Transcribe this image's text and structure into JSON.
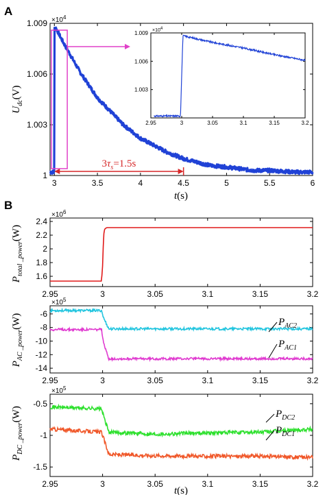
{
  "panel_labels": {
    "a": "A",
    "b": "B"
  },
  "chart_data": [
    {
      "id": "A-main",
      "type": "line",
      "ylabel": {
        "main": "U",
        "sub": "dc",
        "unit": "(V)"
      },
      "xlabel": {
        "main": "t",
        "unit": "(s)"
      },
      "xlim": [
        2.95,
        6.0
      ],
      "ylim": [
        1.0,
        1.009
      ],
      "xticks": [
        3,
        3.5,
        4,
        4.5,
        5,
        5.5,
        6
      ],
      "xtick_labels": [
        "3",
        "3.5",
        "4",
        "4.5",
        "5",
        "5.5",
        "6"
      ],
      "yticks": [
        1.0,
        1.003,
        1.006,
        1.009
      ],
      "ytick_labels": [
        "1",
        "1.003",
        "1.006",
        "1.009"
      ],
      "multiplier": "×10",
      "multiplier_exp": "4",
      "color": "#2042d6",
      "series": [
        {
          "x": [
            2.95,
            2.99,
            2.99,
            3.0,
            3.0,
            3.02,
            3.1,
            3.3,
            3.5,
            3.8,
            4.0,
            4.3,
            4.5,
            4.8,
            5.0,
            5.3,
            5.5,
            5.8,
            6.0
          ],
          "values": [
            1.0002,
            1.0002,
            1.0002,
            1.0002,
            1.0087,
            1.0087,
            1.0079,
            1.0061,
            1.0046,
            1.003,
            1.0022,
            1.0014,
            1.001,
            1.0006,
            1.0005,
            1.0003,
            1.0003,
            1.0002,
            1.0002
          ]
        }
      ],
      "highlight_box": {
        "x": [
          2.965,
          3.15
        ],
        "y": [
          1.0,
          1.009
        ],
        "color": "#e040c8"
      },
      "annotation": {
        "label": "3",
        "tau": "τ",
        "sub": "s",
        "value": "=1.5s",
        "x": [
          3.0,
          4.5
        ],
        "color": "#d62728"
      }
    },
    {
      "id": "A-inset",
      "type": "line",
      "xlim": [
        2.95,
        3.2
      ],
      "ylim": [
        1.0,
        1.009
      ],
      "xticks": [
        2.95,
        3,
        3.05,
        3.1,
        3.15,
        3.2
      ],
      "xtick_labels": [
        "2.95",
        "3",
        "3.05",
        "3.1",
        "3.15",
        "3.2"
      ],
      "yticks": [
        1.003,
        1.006,
        1.009
      ],
      "ytick_labels": [
        "1.003",
        "1.006",
        "1.009"
      ],
      "multiplier": "×10",
      "multiplier_exp": "4",
      "color": "#2042d6",
      "series": [
        {
          "x": [
            2.955,
            2.998,
            3.0,
            3.002,
            3.05,
            3.1,
            3.15,
            3.2
          ],
          "values": [
            1.0002,
            1.0002,
            1.0045,
            1.0087,
            1.008,
            1.0074,
            1.0067,
            1.0061
          ]
        }
      ]
    },
    {
      "id": "B-total",
      "type": "line",
      "ylabel": {
        "main": "P",
        "sub": "total _power",
        "unit": "(W)"
      },
      "xlim": [
        2.95,
        3.2
      ],
      "ylim": [
        1.45,
        2.45
      ],
      "xticks": [
        2.95,
        3,
        3.05,
        3.1,
        3.15,
        3.2
      ],
      "xtick_labels": [
        "2.95",
        "3",
        "3.05",
        "3.1",
        "3.15",
        "3.2"
      ],
      "yticks": [
        1.6,
        1.8,
        2.0,
        2.2,
        2.4
      ],
      "ytick_labels": [
        "1.6",
        "1.8",
        "2",
        "2.2",
        "2.4"
      ],
      "multiplier": "×10",
      "multiplier_exp": "6",
      "series": [
        {
          "color": "#e01818",
          "x": [
            2.95,
            2.999,
            3.0,
            3.001,
            3.002,
            3.004,
            3.2
          ],
          "values": [
            1.53,
            1.53,
            1.75,
            2.2,
            2.29,
            2.31,
            2.31
          ]
        }
      ]
    },
    {
      "id": "B-ac",
      "type": "line",
      "ylabel": {
        "main": "P",
        "sub": "AC _power",
        "unit": "(W)"
      },
      "xlim": [
        2.95,
        3.2
      ],
      "ylim": [
        -14.7,
        -4.8
      ],
      "xticks": [
        2.95,
        3,
        3.05,
        3.1,
        3.15,
        3.2
      ],
      "xtick_labels": [
        "2.95",
        "3",
        "3.05",
        "3.1",
        "3.15",
        "3.2"
      ],
      "yticks": [
        -6,
        -8,
        -10,
        -12,
        -14
      ],
      "ytick_labels": [
        "-6",
        "-8",
        "-10",
        "-12",
        "-14"
      ],
      "multiplier": "×10",
      "multiplier_exp": "5",
      "series": [
        {
          "name_main": "P",
          "name_sub": "AC2",
          "color": "#22c5df",
          "x": [
            2.95,
            2.999,
            3.001,
            3.006,
            3.2
          ],
          "values": [
            -5.5,
            -5.5,
            -6.6,
            -8.2,
            -8.2
          ]
        },
        {
          "name_main": "P",
          "name_sub": "AC1",
          "color": "#e03ad0",
          "x": [
            2.95,
            2.999,
            3.001,
            3.006,
            3.2
          ],
          "values": [
            -8.3,
            -8.3,
            -10.4,
            -12.6,
            -12.6
          ]
        }
      ]
    },
    {
      "id": "B-dc",
      "type": "line",
      "ylabel": {
        "main": "P",
        "sub": "DC _power",
        "unit": "(W)"
      },
      "xlabel": {
        "main": "t",
        "unit": "(s)"
      },
      "xlim": [
        2.95,
        3.2
      ],
      "ylim": [
        -1.65,
        -0.35
      ],
      "xticks": [
        2.95,
        3,
        3.05,
        3.1,
        3.15,
        3.2
      ],
      "xtick_labels": [
        "2.95",
        "3",
        "3.05",
        "3.1",
        "3.15",
        "3.2"
      ],
      "yticks": [
        -0.5,
        -1.0,
        -1.5
      ],
      "ytick_labels": [
        "-0.5",
        "-1",
        "-1.5"
      ],
      "multiplier": "×10",
      "multiplier_exp": "5",
      "series": [
        {
          "name_main": "P",
          "name_sub": "DC2",
          "color": "#2ee02e",
          "x": [
            2.95,
            2.999,
            3.001,
            3.006,
            3.05,
            3.1,
            3.15,
            3.2
          ],
          "values": [
            -0.55,
            -0.58,
            -0.7,
            -0.95,
            -0.98,
            -0.96,
            -0.95,
            -0.9
          ]
        },
        {
          "name_main": "P",
          "name_sub": "DC1",
          "color": "#f0582a",
          "x": [
            2.95,
            2.999,
            3.001,
            3.006,
            3.05,
            3.1,
            3.15,
            3.2
          ],
          "values": [
            -0.9,
            -0.95,
            -1.05,
            -1.3,
            -1.32,
            -1.33,
            -1.33,
            -1.35
          ]
        }
      ]
    }
  ]
}
